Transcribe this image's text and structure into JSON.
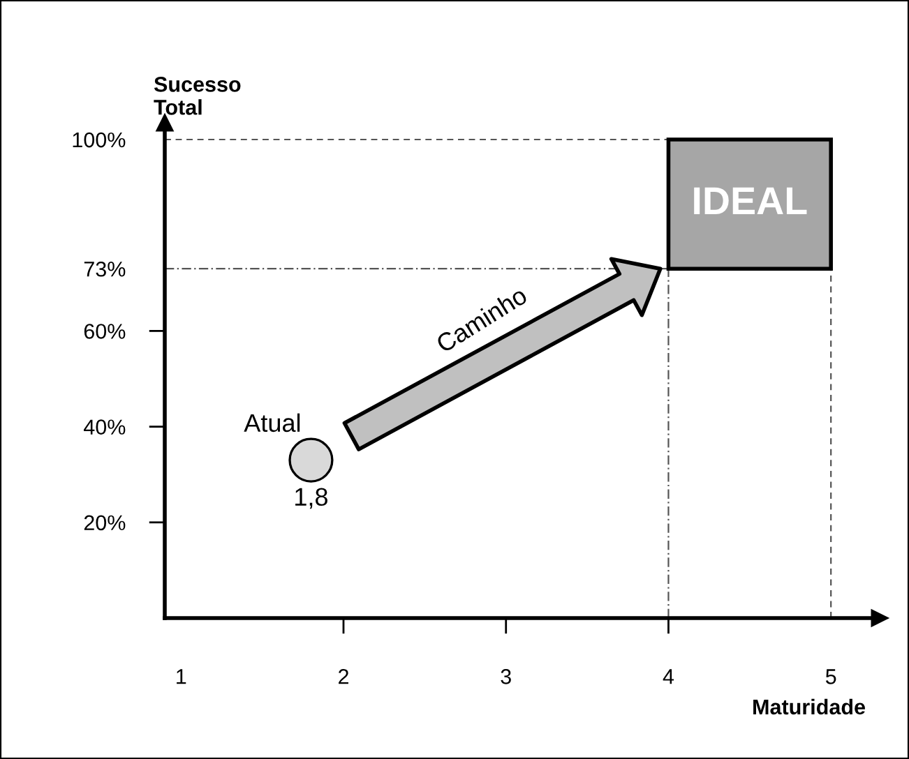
{
  "chart_data": {
    "type": "scatter",
    "xlabel": "Maturidade",
    "ylabel": "Sucesso\nTotal",
    "x": [
      1.8
    ],
    "series": [
      {
        "name": "Atual",
        "color": "#d9d9d9",
        "values": [
          33
        ]
      }
    ],
    "marker": "circle",
    "xlim": [
      0.9,
      5.3
    ],
    "xticks": [
      1,
      2,
      3,
      4,
      5
    ],
    "ylim": [
      0,
      103.5
    ],
    "yticks": [
      {
        "value": 20,
        "label": "20%"
      },
      {
        "value": 40,
        "label": "40%"
      },
      {
        "value": 60,
        "label": "60%"
      },
      {
        "value": 73,
        "label": "73%"
      },
      {
        "value": 100,
        "label": "100%"
      }
    ],
    "ref_lines": [
      {
        "axis": "y",
        "value": 100,
        "line_style": "dashed"
      },
      {
        "axis": "y",
        "value": 73,
        "line_style": "dotted"
      },
      {
        "axis": "x",
        "value": 4,
        "line_style": "dotted"
      },
      {
        "axis": "x",
        "value": 5,
        "line_style": "dashed"
      }
    ],
    "annotations": [
      "IDEAL",
      "Caminho",
      {
        "text": "1,8",
        "x": 1.8,
        "y": 33
      }
    ],
    "grid": false
  }
}
